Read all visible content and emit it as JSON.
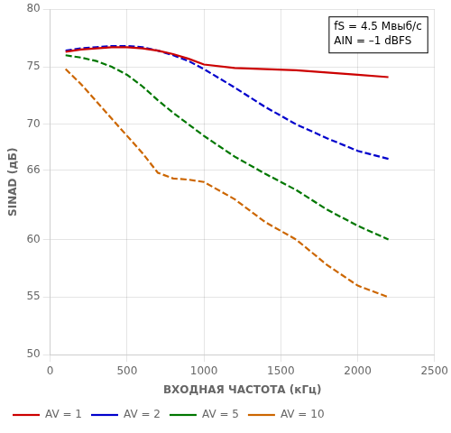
{
  "chart_data": {
    "type": "line",
    "xlabel": "ВХОДНАЯ ЧАСТОТА (кГц)",
    "ylabel": "SINAD (дБ)",
    "xlim": [
      0,
      2500
    ],
    "ylim": [
      50,
      80
    ],
    "xticks": [
      0,
      500,
      1000,
      1500,
      2000,
      2500
    ],
    "yticks": [
      50,
      55,
      60,
      66,
      70,
      75,
      80
    ],
    "grid": true,
    "legend": "lower left",
    "annotations": [
      "fS = 4.5 Мвыб/с",
      "AIN = –1 dBFS"
    ],
    "x": [
      100,
      200,
      300,
      400,
      500,
      600,
      700,
      800,
      900,
      1000,
      1200,
      1400,
      1600,
      1800,
      2000,
      2200
    ],
    "series": [
      {
        "name": "AV = 1",
        "color": "#cc0000",
        "line_style": "solid",
        "values": [
          76.3,
          76.5,
          76.6,
          76.7,
          76.7,
          76.6,
          76.4,
          76.1,
          75.7,
          75.2,
          74.9,
          74.8,
          74.7,
          74.5,
          74.3,
          74.1
        ]
      },
      {
        "name": "AV = 2",
        "color": "#0000cc",
        "line_style": "dashed",
        "values": [
          76.4,
          76.6,
          76.7,
          76.8,
          76.8,
          76.7,
          76.4,
          76.0,
          75.5,
          74.8,
          73.2,
          71.5,
          70.0,
          68.8,
          67.7,
          67.0
        ]
      },
      {
        "name": "AV = 5",
        "color": "#007700",
        "line_style": "dashed",
        "values": [
          76.0,
          75.8,
          75.5,
          75.0,
          74.3,
          73.3,
          72.1,
          71.0,
          70.0,
          69.0,
          67.2,
          65.7,
          64.3,
          62.6,
          61.2,
          60.0
        ]
      },
      {
        "name": "AV = 10",
        "color": "#cc6600",
        "line_style": "dashed",
        "values": [
          74.8,
          73.5,
          72.0,
          70.5,
          69.0,
          67.5,
          65.8,
          65.3,
          65.2,
          65.0,
          63.5,
          61.5,
          60.0,
          57.8,
          56.0,
          55.0
        ]
      }
    ]
  }
}
